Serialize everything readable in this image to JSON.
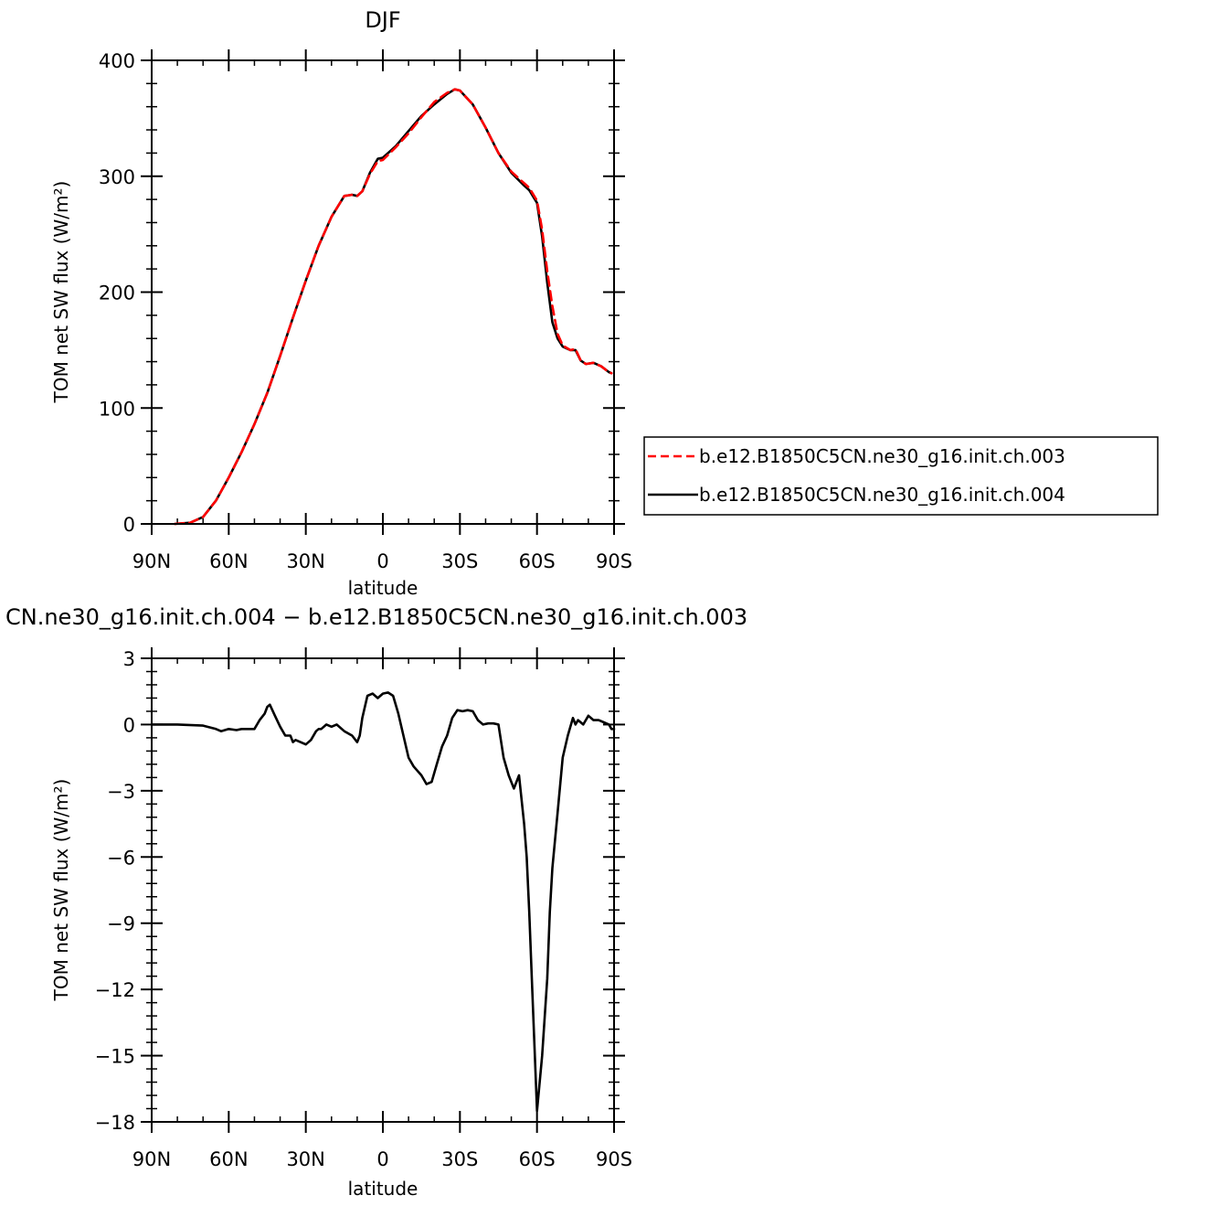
{
  "chart_data": [
    {
      "type": "line",
      "title": "DJF",
      "xlabel": "latitude",
      "ylabel": "TOM net SW flux (W/m²)",
      "xlim": [
        90,
        -90
      ],
      "ylim": [
        0,
        400
      ],
      "xticks": [
        90,
        60,
        30,
        0,
        -30,
        -60,
        -90
      ],
      "xtick_labels": [
        "90N",
        "60N",
        "30N",
        "0",
        "30S",
        "60S",
        "90S"
      ],
      "yticks": [
        0,
        100,
        200,
        300,
        400
      ],
      "ytick_labels": [
        "0",
        "100",
        "200",
        "300",
        "400"
      ],
      "legend": "right",
      "series": [
        {
          "name": "b.e12.B1850C5CN.ne30_g16.init.ch.003",
          "color": "#ff0000",
          "dash": true,
          "x": [
            81,
            75,
            70,
            65,
            60,
            55,
            50,
            45,
            40,
            35,
            30,
            25,
            20,
            15,
            12,
            10,
            8,
            5,
            2,
            0,
            -5,
            -10,
            -15,
            -20,
            -25,
            -28,
            -30,
            -35,
            -40,
            -45,
            -50,
            -55,
            -57,
            -60,
            -62,
            -64,
            -66,
            -68,
            -70,
            -73,
            -75,
            -77,
            -79,
            -82,
            -85,
            -88,
            -89
          ],
          "y": [
            0,
            1,
            6,
            20,
            40,
            62,
            86,
            113,
            145,
            178,
            210,
            240,
            265,
            283,
            284,
            283,
            287,
            302,
            313,
            314,
            325,
            337,
            351,
            364,
            372,
            375,
            374,
            362,
            342,
            320,
            304,
            294,
            290,
            279,
            254,
            218,
            188,
            164,
            154,
            150,
            151,
            141,
            138,
            139,
            136,
            131,
            130
          ]
        },
        {
          "name": "b.e12.B1850C5CN.ne30_g16.init.ch.004",
          "color": "#000000",
          "dash": false,
          "x": [
            81,
            75,
            70,
            65,
            60,
            55,
            50,
            45,
            40,
            35,
            30,
            25,
            20,
            15,
            12,
            10,
            8,
            5,
            2,
            0,
            -5,
            -10,
            -15,
            -20,
            -25,
            -28,
            -30,
            -35,
            -40,
            -45,
            -50,
            -55,
            -57,
            -60,
            -62,
            -64,
            -66,
            -68,
            -70,
            -73,
            -75,
            -77,
            -79,
            -82,
            -85,
            -88,
            -89
          ],
          "y": [
            0,
            1,
            6,
            20,
            40,
            62,
            86,
            113,
            145,
            178,
            210,
            240,
            265,
            283,
            284,
            283,
            287,
            303,
            315,
            316,
            326,
            339,
            352,
            362,
            371,
            375,
            374,
            362,
            342,
            320,
            303,
            292,
            288,
            277,
            248,
            208,
            174,
            160,
            153,
            150,
            150,
            141,
            138,
            139,
            136,
            131,
            130
          ]
        }
      ]
    },
    {
      "type": "line",
      "title": "CN.ne30_g16.init.ch.004 − b.e12.B1850C5CN.ne30_g16.init.ch.003",
      "xlabel": "latitude",
      "ylabel": "TOM net SW flux (W/m²)",
      "xlim": [
        90,
        -90
      ],
      "ylim": [
        -18,
        3
      ],
      "xticks": [
        90,
        60,
        30,
        0,
        -30,
        -60,
        -90
      ],
      "xtick_labels": [
        "90N",
        "60N",
        "30N",
        "0",
        "30S",
        "60S",
        "90S"
      ],
      "yticks": [
        3,
        0,
        -3,
        -6,
        -9,
        -12,
        -15,
        -18
      ],
      "ytick_labels": [
        "3",
        "0",
        "−3",
        "−6",
        "−9",
        "−12",
        "−15",
        "−18"
      ],
      "series": [
        {
          "color": "#000000",
          "x": [
            90,
            80,
            70,
            65,
            63,
            60,
            57,
            55,
            53,
            50,
            48,
            46,
            45,
            44,
            42,
            40,
            38,
            36,
            35,
            34,
            32,
            30,
            28,
            26,
            25,
            24,
            22,
            20,
            18,
            15,
            12,
            10,
            9,
            8,
            6,
            4,
            2,
            0,
            -2,
            -4,
            -6,
            -8,
            -10,
            -12,
            -15,
            -17,
            -19,
            -21,
            -23,
            -25,
            -27,
            -29,
            -31,
            -33,
            -35,
            -37,
            -39,
            -41,
            -43,
            -45,
            -47,
            -49,
            -51,
            -53,
            -55,
            -56,
            -57,
            -58,
            -60,
            -62,
            -64,
            -65,
            -66,
            -68,
            -70,
            -72,
            -74,
            -75,
            -76,
            -78,
            -80,
            -82,
            -84,
            -86,
            -88,
            -89,
            -90
          ],
          "y": [
            0,
            0,
            -0.05,
            -0.2,
            -0.3,
            -0.2,
            -0.25,
            -0.2,
            -0.2,
            -0.2,
            0.2,
            0.5,
            0.8,
            0.9,
            0.4,
            -0.1,
            -0.5,
            -0.5,
            -0.8,
            -0.7,
            -0.8,
            -0.9,
            -0.7,
            -0.3,
            -0.2,
            -0.2,
            0.0,
            -0.1,
            0.0,
            -0.3,
            -0.5,
            -0.8,
            -0.5,
            0.3,
            1.3,
            1.4,
            1.2,
            1.4,
            1.45,
            1.3,
            0.5,
            -0.5,
            -1.5,
            -1.9,
            -2.3,
            -2.7,
            -2.6,
            -1.8,
            -1.0,
            -0.5,
            0.3,
            0.65,
            0.6,
            0.65,
            0.6,
            0.2,
            0.0,
            0.05,
            0.05,
            0.0,
            -1.5,
            -2.3,
            -2.9,
            -2.3,
            -4.5,
            -6.0,
            -8.5,
            -11.5,
            -17.5,
            -15.0,
            -11.5,
            -8.5,
            -6.5,
            -4.0,
            -1.5,
            -0.5,
            0.3,
            0.0,
            0.2,
            0.0,
            0.4,
            0.2,
            0.2,
            0.1,
            0.0,
            -0.2,
            -0.2
          ]
        }
      ]
    }
  ]
}
